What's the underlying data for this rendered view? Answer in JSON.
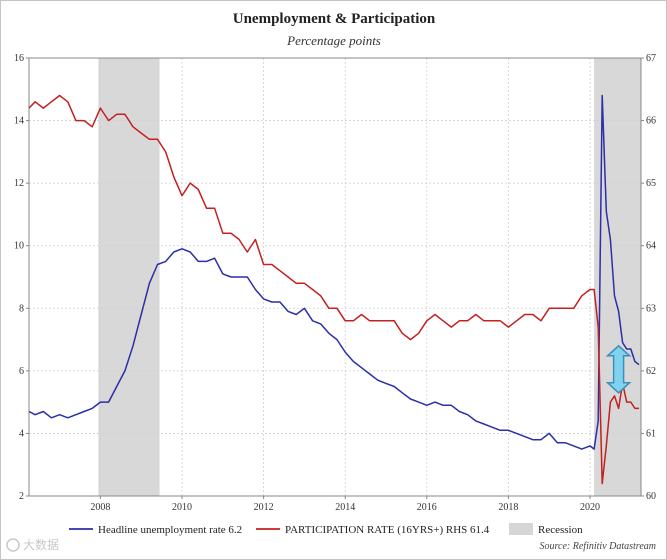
{
  "chart_data": {
    "type": "line",
    "title": "Unemployment & Participation",
    "subtitle": "Percentage points",
    "source": "Source: Refinitiv Datastream",
    "watermark": "大数据",
    "x_tick_labels": [
      "2008",
      "2010",
      "2012",
      "2014",
      "2016",
      "2018",
      "2020"
    ],
    "x_ticks": [
      2008,
      2010,
      2012,
      2014,
      2016,
      2018,
      2020
    ],
    "xlim": [
      2006.25,
      2021.25
    ],
    "left_axis": {
      "ylim": [
        2,
        16
      ],
      "ticks": [
        "2",
        "4",
        "6",
        "8",
        "10",
        "12",
        "14",
        "16"
      ]
    },
    "right_axis": {
      "ylim": [
        60,
        67
      ],
      "ticks": [
        "60",
        "61",
        "62",
        "63",
        "64",
        "65",
        "66",
        "67"
      ]
    },
    "recessions": [
      [
        2007.95,
        2009.45
      ],
      [
        2020.1,
        2021.25
      ]
    ],
    "series": [
      {
        "name": "Headline unemployment rate 6.2",
        "axis": "left",
        "color": "#2b2fa8",
        "x": [
          2006.25,
          2006.4,
          2006.6,
          2006.8,
          2007.0,
          2007.2,
          2007.4,
          2007.6,
          2007.8,
          2008.0,
          2008.2,
          2008.4,
          2008.6,
          2008.8,
          2009.0,
          2009.2,
          2009.4,
          2009.6,
          2009.8,
          2010.0,
          2010.2,
          2010.4,
          2010.6,
          2010.8,
          2011.0,
          2011.2,
          2011.4,
          2011.6,
          2011.8,
          2012.0,
          2012.2,
          2012.4,
          2012.6,
          2012.8,
          2013.0,
          2013.2,
          2013.4,
          2013.6,
          2013.8,
          2014.0,
          2014.2,
          2014.4,
          2014.6,
          2014.8,
          2015.0,
          2015.2,
          2015.4,
          2015.6,
          2015.8,
          2016.0,
          2016.2,
          2016.4,
          2016.6,
          2016.8,
          2017.0,
          2017.2,
          2017.4,
          2017.6,
          2017.8,
          2018.0,
          2018.2,
          2018.4,
          2018.6,
          2018.8,
          2019.0,
          2019.2,
          2019.4,
          2019.6,
          2019.8,
          2020.0,
          2020.1,
          2020.2,
          2020.3,
          2020.4,
          2020.5,
          2020.6,
          2020.7,
          2020.8,
          2020.9,
          2021.0,
          2021.1,
          2021.2
        ],
        "values": [
          4.7,
          4.6,
          4.7,
          4.5,
          4.6,
          4.5,
          4.6,
          4.7,
          4.8,
          5.0,
          5.0,
          5.5,
          6.0,
          6.8,
          7.8,
          8.8,
          9.4,
          9.5,
          9.8,
          9.9,
          9.8,
          9.5,
          9.5,
          9.6,
          9.1,
          9.0,
          9.0,
          9.0,
          8.6,
          8.3,
          8.2,
          8.2,
          7.9,
          7.8,
          8.0,
          7.6,
          7.5,
          7.2,
          7.0,
          6.6,
          6.3,
          6.1,
          5.9,
          5.7,
          5.6,
          5.5,
          5.3,
          5.1,
          5.0,
          4.9,
          5.0,
          4.9,
          4.9,
          4.7,
          4.6,
          4.4,
          4.3,
          4.2,
          4.1,
          4.1,
          4.0,
          3.9,
          3.8,
          3.8,
          4.0,
          3.7,
          3.7,
          3.6,
          3.5,
          3.6,
          3.5,
          4.4,
          14.8,
          11.1,
          10.2,
          8.4,
          7.9,
          6.9,
          6.7,
          6.7,
          6.3,
          6.2
        ]
      },
      {
        "name": "PARTICIPATION RATE (16YRS+)  RHS 61.4",
        "axis": "right",
        "color": "#c42020",
        "x": [
          2006.25,
          2006.4,
          2006.6,
          2006.8,
          2007.0,
          2007.2,
          2007.4,
          2007.6,
          2007.8,
          2008.0,
          2008.2,
          2008.4,
          2008.6,
          2008.8,
          2009.0,
          2009.2,
          2009.4,
          2009.6,
          2009.8,
          2010.0,
          2010.2,
          2010.4,
          2010.6,
          2010.8,
          2011.0,
          2011.2,
          2011.4,
          2011.6,
          2011.8,
          2012.0,
          2012.2,
          2012.4,
          2012.6,
          2012.8,
          2013.0,
          2013.2,
          2013.4,
          2013.6,
          2013.8,
          2014.0,
          2014.2,
          2014.4,
          2014.6,
          2014.8,
          2015.0,
          2015.2,
          2015.4,
          2015.6,
          2015.8,
          2016.0,
          2016.2,
          2016.4,
          2016.6,
          2016.8,
          2017.0,
          2017.2,
          2017.4,
          2017.6,
          2017.8,
          2018.0,
          2018.2,
          2018.4,
          2018.6,
          2018.8,
          2019.0,
          2019.2,
          2019.4,
          2019.6,
          2019.8,
          2020.0,
          2020.1,
          2020.2,
          2020.3,
          2020.4,
          2020.5,
          2020.6,
          2020.7,
          2020.8,
          2020.9,
          2021.0,
          2021.1,
          2021.2
        ],
        "values": [
          66.2,
          66.3,
          66.2,
          66.3,
          66.4,
          66.3,
          66.0,
          66.0,
          65.9,
          66.2,
          66.0,
          66.1,
          66.1,
          65.9,
          65.8,
          65.7,
          65.7,
          65.5,
          65.1,
          64.8,
          65.0,
          64.9,
          64.6,
          64.6,
          64.2,
          64.2,
          64.1,
          63.9,
          64.1,
          63.7,
          63.7,
          63.6,
          63.5,
          63.4,
          63.4,
          63.3,
          63.2,
          63.0,
          63.0,
          62.8,
          62.8,
          62.9,
          62.8,
          62.8,
          62.8,
          62.8,
          62.6,
          62.5,
          62.6,
          62.8,
          62.9,
          62.8,
          62.7,
          62.8,
          62.8,
          62.9,
          62.8,
          62.8,
          62.8,
          62.7,
          62.8,
          62.9,
          62.9,
          62.8,
          63.0,
          63.0,
          63.0,
          63.0,
          63.2,
          63.3,
          63.3,
          62.7,
          60.2,
          60.8,
          61.5,
          61.6,
          61.4,
          61.8,
          61.5,
          61.5,
          61.4,
          61.4
        ]
      }
    ],
    "legend": {
      "placement": "bottom-center",
      "items": [
        {
          "label": "Headline unemployment rate 6.2",
          "color": "#2b2fa8",
          "kind": "line"
        },
        {
          "label": "PARTICIPATION RATE (16YRS+)  RHS 61.4",
          "color": "#c42020",
          "kind": "line"
        },
        {
          "label": "Recession",
          "color": "#d6d6d6",
          "kind": "box"
        }
      ]
    },
    "annotation": {
      "type": "double-arrow",
      "x": 2020.7,
      "from_left": 6.8,
      "to_left": 5.3,
      "color": "#7fd3ef"
    }
  }
}
